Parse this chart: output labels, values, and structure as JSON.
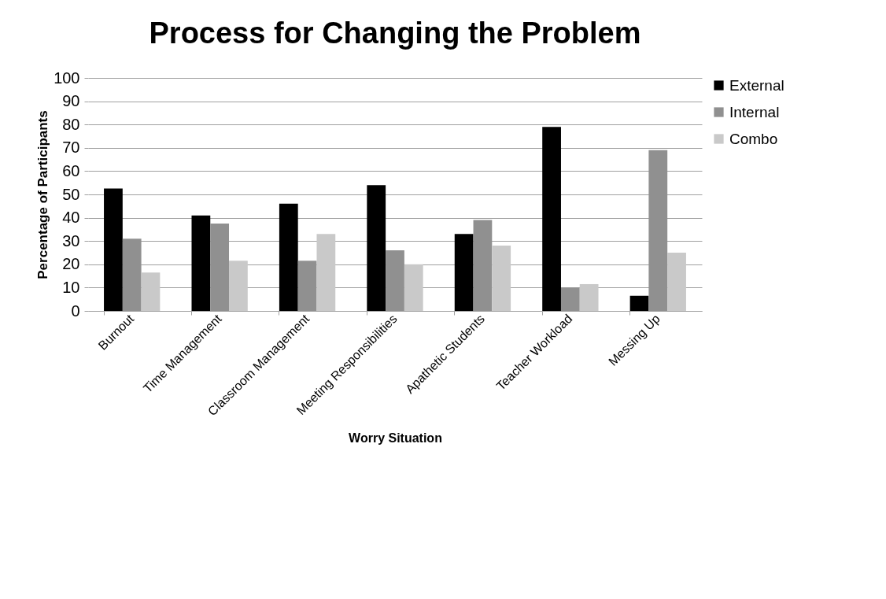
{
  "chart_data": {
    "type": "bar",
    "title": "Process for Changing the Problem",
    "xlabel": "Worry Situation",
    "ylabel": "Percentage of Participants",
    "categories": [
      "Burnout",
      "Time Management",
      "Classroom Management",
      "Meeting Responsibilities",
      "Apathetic Students",
      "Teacher Workload",
      "Messing Up"
    ],
    "series": [
      {
        "name": "External",
        "color": "#000000",
        "values": [
          52.5,
          41,
          46,
          54,
          33,
          79,
          6.5
        ]
      },
      {
        "name": "Internal",
        "color": "#909090",
        "values": [
          31,
          37.5,
          21.5,
          26,
          39,
          10,
          69
        ]
      },
      {
        "name": "Combo",
        "color": "#c9c9c9",
        "values": [
          16.5,
          21.5,
          33,
          20,
          28,
          11.5,
          25
        ]
      }
    ],
    "ylim": [
      0,
      100
    ],
    "yticks": [
      0,
      10,
      20,
      30,
      40,
      50,
      60,
      70,
      80,
      90,
      100
    ],
    "grid": "y",
    "legend": "right"
  }
}
